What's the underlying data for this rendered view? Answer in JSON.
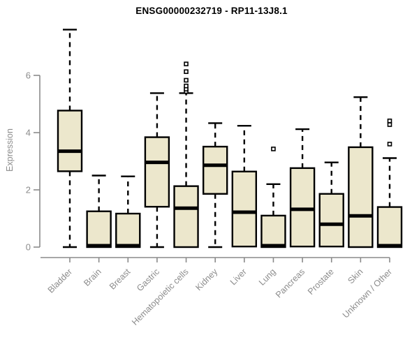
{
  "chart_data": {
    "type": "boxplot",
    "title": "ENSG00000232719 - RP11-13J8.1",
    "ylabel": "Expression",
    "xlabel": "",
    "yticks": [
      0,
      2,
      4,
      6
    ],
    "ylim": [
      0,
      7.8
    ],
    "grid": false,
    "legend": "none",
    "categories": [
      "Bladder",
      "Brain",
      "Breast",
      "Gastric",
      "Hematopoietic cells",
      "Kidney",
      "Liver",
      "Lung",
      "Pancreas",
      "Prostate",
      "Skin",
      "Unknown / Other"
    ],
    "boxes": [
      {
        "category": "Bladder",
        "whisker_low": 0,
        "q1": 2.65,
        "median": 3.35,
        "q3": 4.77,
        "whisker_high": 7.6,
        "outliers": []
      },
      {
        "category": "Brain",
        "whisker_low": 0,
        "q1": 0,
        "median": 0.05,
        "q3": 1.25,
        "whisker_high": 2.5,
        "outliers": []
      },
      {
        "category": "Breast",
        "whisker_low": 0,
        "q1": 0,
        "median": 0.05,
        "q3": 1.17,
        "whisker_high": 2.47,
        "outliers": []
      },
      {
        "category": "Gastric",
        "whisker_low": 0,
        "q1": 1.41,
        "median": 2.96,
        "q3": 3.84,
        "whisker_high": 5.38,
        "outliers": []
      },
      {
        "category": "Hematopoietic cells",
        "whisker_low": 0,
        "q1": 0,
        "median": 1.36,
        "q3": 2.13,
        "whisker_high": 5.38,
        "outliers": [
          5.44,
          5.52,
          5.63,
          5.83,
          6.13,
          6.4
        ]
      },
      {
        "category": "Kidney",
        "whisker_low": 0,
        "q1": 1.86,
        "median": 2.86,
        "q3": 3.51,
        "whisker_high": 4.33,
        "outliers": []
      },
      {
        "category": "Liver",
        "whisker_low": 0.02,
        "q1": 0.02,
        "median": 1.22,
        "q3": 2.64,
        "whisker_high": 4.24,
        "outliers": []
      },
      {
        "category": "Lung",
        "whisker_low": 0,
        "q1": 0,
        "median": 0.05,
        "q3": 1.1,
        "whisker_high": 2.2,
        "outliers": [
          3.43
        ]
      },
      {
        "category": "Pancreas",
        "whisker_low": 0.02,
        "q1": 0.02,
        "median": 1.32,
        "q3": 2.76,
        "whisker_high": 4.12,
        "outliers": []
      },
      {
        "category": "Prostate",
        "whisker_low": 0.02,
        "q1": 0.02,
        "median": 0.8,
        "q3": 1.86,
        "whisker_high": 2.96,
        "outliers": []
      },
      {
        "category": "Skin",
        "whisker_low": 0,
        "q1": 0,
        "median": 1.09,
        "q3": 3.49,
        "whisker_high": 5.24,
        "outliers": []
      },
      {
        "category": "Unknown / Other",
        "whisker_low": 0,
        "q1": 0,
        "median": 0.05,
        "q3": 1.4,
        "whisker_high": 3.11,
        "outliers": [
          3.6,
          4.28,
          4.41
        ]
      }
    ],
    "colors": {
      "box_fill": "#ece7cc",
      "box_border": "#000000",
      "median": "#000000",
      "whisker": "#000000",
      "outlier_stroke": "#000000",
      "outlier_fill": "#ffffff",
      "axis": "#8a8a8a",
      "tick_label": "#8c8c8c",
      "title": "#000000"
    }
  }
}
